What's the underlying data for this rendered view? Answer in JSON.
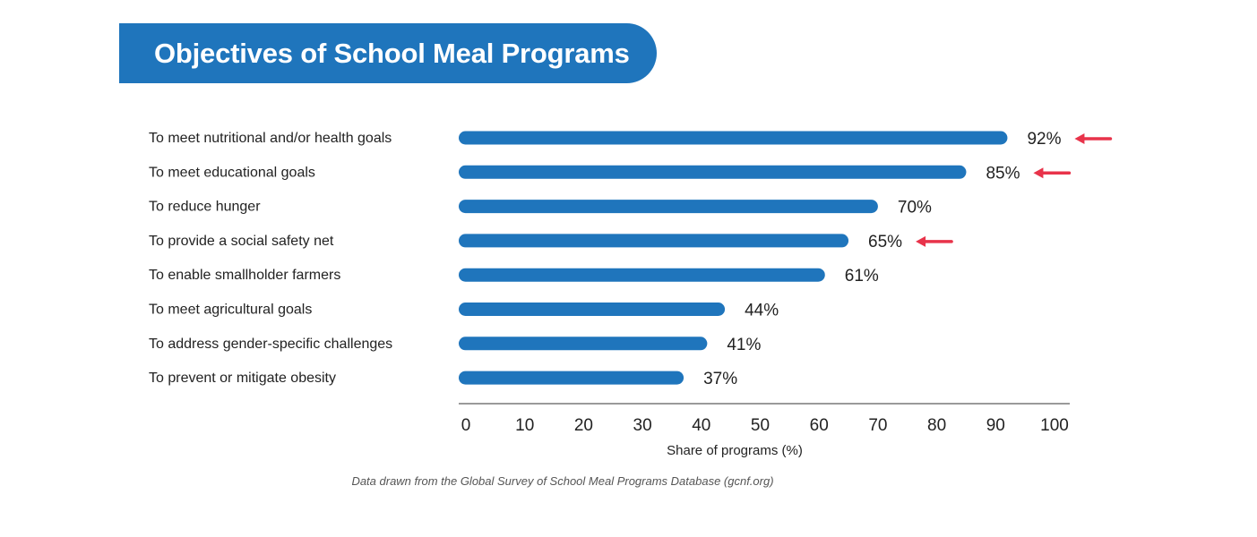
{
  "header": {
    "title": "Objectives of School Meal Programs"
  },
  "chart_data": {
    "type": "bar",
    "orientation": "horizontal",
    "title": "Objectives of School Meal Programs",
    "categories": [
      "To meet nutritional and/or health goals",
      "To meet educational goals",
      "To reduce hunger",
      "To provide a social safety net",
      "To enable smallholder farmers",
      "To meet agricultural goals",
      "To address gender-specific challenges",
      "To prevent or mitigate obesity"
    ],
    "values": [
      92,
      85,
      70,
      65,
      61,
      44,
      41,
      37
    ],
    "value_labels": [
      "92%",
      "85%",
      "70%",
      "65%",
      "61%",
      "44%",
      "41%",
      "37%"
    ],
    "highlighted": [
      true,
      true,
      false,
      true,
      false,
      false,
      false,
      false
    ],
    "xlabel": "Share of programs (%)",
    "ylabel": "",
    "xlim": [
      0,
      100
    ],
    "x_ticks": [
      "0",
      "10",
      "20",
      "30",
      "40",
      "50",
      "60",
      "70",
      "80",
      "90",
      "100"
    ],
    "bar_color": "#1f75bc",
    "highlight_color": "#e8334a",
    "grid": false
  },
  "footer": {
    "source": "Data drawn from the Global Survey of School Meal Programs Database (gcnf.org)"
  }
}
